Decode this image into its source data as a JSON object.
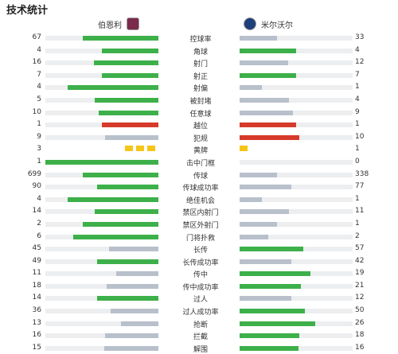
{
  "title": "技术统计",
  "teams": {
    "home": {
      "name": "伯恩利",
      "crest": "burnley-crest-icon"
    },
    "away": {
      "name": "米尔沃尔",
      "crest": "millwall-crest-icon"
    }
  },
  "colors": {
    "lead": "#3db04a",
    "trail": "#b8c0cc",
    "offside_foul": "#d63a2a",
    "yellow": "#f5c518",
    "track": "#eceef0"
  },
  "stats": [
    {
      "label": "控球率",
      "home": "67",
      "away": "33",
      "home_ratio": 0.67,
      "away_ratio": 0.33,
      "home_color": "g",
      "away_color": "gr"
    },
    {
      "label": "角球",
      "home": "4",
      "away": "4",
      "home_ratio": 0.5,
      "away_ratio": 0.5,
      "home_color": "g",
      "away_color": "g"
    },
    {
      "label": "射门",
      "home": "16",
      "away": "12",
      "home_ratio": 0.57,
      "away_ratio": 0.43,
      "home_color": "g",
      "away_color": "gr"
    },
    {
      "label": "射正",
      "home": "7",
      "away": "7",
      "home_ratio": 0.5,
      "away_ratio": 0.5,
      "home_color": "g",
      "away_color": "g"
    },
    {
      "label": "射偏",
      "home": "4",
      "away": "1",
      "home_ratio": 0.8,
      "away_ratio": 0.2,
      "home_color": "g",
      "away_color": "gr"
    },
    {
      "label": "被封堵",
      "home": "5",
      "away": "4",
      "home_ratio": 0.56,
      "away_ratio": 0.44,
      "home_color": "g",
      "away_color": "gr"
    },
    {
      "label": "任意球",
      "home": "10",
      "away": "9",
      "home_ratio": 0.53,
      "away_ratio": 0.47,
      "home_color": "g",
      "away_color": "gr"
    },
    {
      "label": "越位",
      "home": "1",
      "away": "1",
      "home_ratio": 0.5,
      "away_ratio": 0.5,
      "home_color": "r",
      "away_color": "r"
    },
    {
      "label": "犯规",
      "home": "9",
      "away": "10",
      "home_ratio": 0.47,
      "away_ratio": 0.53,
      "home_color": "gr",
      "away_color": "r"
    },
    {
      "label": "黄牌",
      "home": "3",
      "away": "1",
      "home_cards": 3,
      "away_cards": 1
    },
    {
      "label": "击中门框",
      "home": "1",
      "away": "0",
      "home_ratio": 1.0,
      "away_ratio": 0.0,
      "home_color": "g",
      "away_color": "gr"
    },
    {
      "label": "传球",
      "home": "699",
      "away": "338",
      "home_ratio": 0.67,
      "away_ratio": 0.33,
      "home_color": "g",
      "away_color": "gr"
    },
    {
      "label": "传球成功率",
      "home": "90",
      "away": "77",
      "home_ratio": 0.54,
      "away_ratio": 0.46,
      "home_color": "g",
      "away_color": "gr"
    },
    {
      "label": "绝佳机会",
      "home": "4",
      "away": "1",
      "home_ratio": 0.8,
      "away_ratio": 0.2,
      "home_color": "g",
      "away_color": "gr"
    },
    {
      "label": "禁区内射门",
      "home": "14",
      "away": "11",
      "home_ratio": 0.56,
      "away_ratio": 0.44,
      "home_color": "g",
      "away_color": "gr"
    },
    {
      "label": "禁区外射门",
      "home": "2",
      "away": "1",
      "home_ratio": 0.67,
      "away_ratio": 0.33,
      "home_color": "g",
      "away_color": "gr"
    },
    {
      "label": "门将扑救",
      "home": "6",
      "away": "2",
      "home_ratio": 0.75,
      "away_ratio": 0.25,
      "home_color": "g",
      "away_color": "gr"
    },
    {
      "label": "长传",
      "home": "45",
      "away": "57",
      "home_ratio": 0.44,
      "away_ratio": 0.56,
      "home_color": "gr",
      "away_color": "g"
    },
    {
      "label": "长传成功率",
      "home": "49",
      "away": "42",
      "home_ratio": 0.54,
      "away_ratio": 0.46,
      "home_color": "g",
      "away_color": "gr"
    },
    {
      "label": "传中",
      "home": "11",
      "away": "19",
      "home_ratio": 0.37,
      "away_ratio": 0.63,
      "home_color": "gr",
      "away_color": "g"
    },
    {
      "label": "传中成功率",
      "home": "18",
      "away": "21",
      "home_ratio": 0.46,
      "away_ratio": 0.54,
      "home_color": "gr",
      "away_color": "g"
    },
    {
      "label": "过人",
      "home": "14",
      "away": "12",
      "home_ratio": 0.54,
      "away_ratio": 0.46,
      "home_color": "g",
      "away_color": "gr"
    },
    {
      "label": "过人成功率",
      "home": "36",
      "away": "50",
      "home_ratio": 0.42,
      "away_ratio": 0.58,
      "home_color": "gr",
      "away_color": "g"
    },
    {
      "label": "抢断",
      "home": "13",
      "away": "26",
      "home_ratio": 0.33,
      "away_ratio": 0.67,
      "home_color": "gr",
      "away_color": "g"
    },
    {
      "label": "拦截",
      "home": "16",
      "away": "18",
      "home_ratio": 0.47,
      "away_ratio": 0.53,
      "home_color": "gr",
      "away_color": "g"
    },
    {
      "label": "解围",
      "home": "15",
      "away": "16",
      "home_ratio": 0.48,
      "away_ratio": 0.52,
      "home_color": "gr",
      "away_color": "g"
    }
  ]
}
